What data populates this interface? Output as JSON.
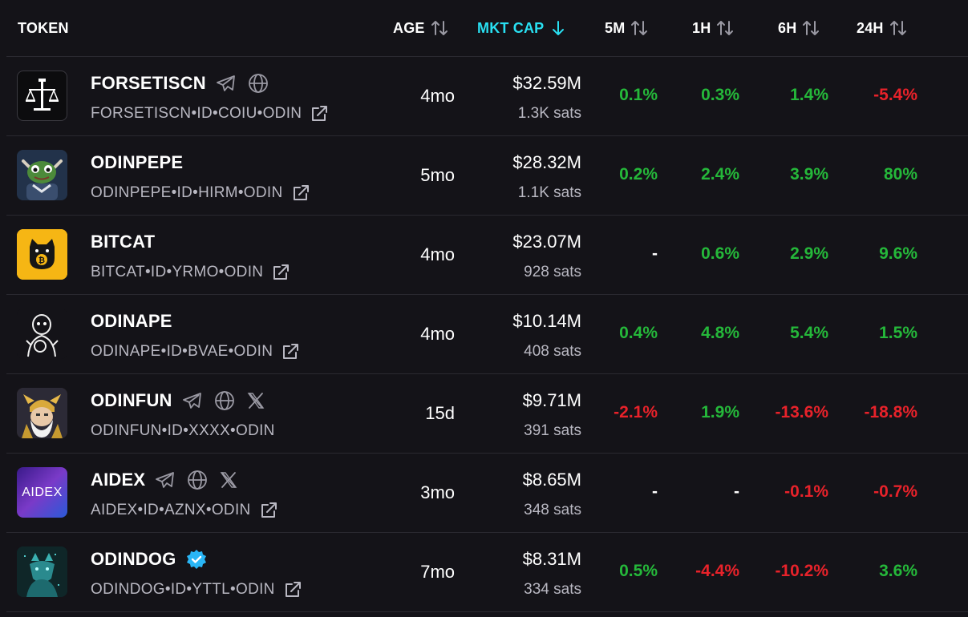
{
  "colors": {
    "background": "#141318",
    "accent": "#29e0f2",
    "positive": "#25b83a",
    "negative": "#e8222a",
    "muted": "#b9b8c2",
    "verified": "#29b6f6"
  },
  "header": {
    "token": "TOKEN",
    "age": "AGE",
    "mkt_cap": "MKT CAP",
    "m5": "5M",
    "h1": "1H",
    "h6": "6H",
    "h24": "24H",
    "active_sort": "MKT CAP",
    "sort_direction": "descending"
  },
  "rows": [
    {
      "name": "FORSETISCN",
      "id": "FORSETISCN•ID•COIU•ODIN",
      "age": "4mo",
      "mkt_cap": "$32.59M",
      "sats": "1.3K sats",
      "m5": "0.1%",
      "h1": "0.3%",
      "h6": "1.4%",
      "h24": "-5.4%",
      "icons": [
        "telegram-icon",
        "website-icon",
        "external-link-icon"
      ]
    },
    {
      "name": "ODINPEPE",
      "id": "ODINPEPE•ID•HIRM•ODIN",
      "age": "5mo",
      "mkt_cap": "$28.32M",
      "sats": "1.1K sats",
      "m5": "0.2%",
      "h1": "2.4%",
      "h6": "3.9%",
      "h24": "80%",
      "icons": [
        "external-link-icon"
      ]
    },
    {
      "name": "BITCAT",
      "id": "BITCAT•ID•YRMO•ODIN",
      "age": "4mo",
      "mkt_cap": "$23.07M",
      "sats": "928 sats",
      "m5": "-",
      "h1": "0.6%",
      "h6": "2.9%",
      "h24": "9.6%",
      "icons": [
        "external-link-icon"
      ]
    },
    {
      "name": "ODINAPE",
      "id": "ODINAPE•ID•BVAE•ODIN",
      "age": "4mo",
      "mkt_cap": "$10.14M",
      "sats": "408 sats",
      "m5": "0.4%",
      "h1": "4.8%",
      "h6": "5.4%",
      "h24": "1.5%",
      "icons": [
        "external-link-icon"
      ]
    },
    {
      "name": "ODINFUN",
      "id": "ODINFUN•ID•XXXX•ODIN",
      "age": "15d",
      "mkt_cap": "$9.71M",
      "sats": "391 sats",
      "m5": "-2.1%",
      "h1": "1.9%",
      "h6": "-13.6%",
      "h24": "-18.8%",
      "icons": [
        "telegram-icon",
        "website-icon",
        "x-icon"
      ]
    },
    {
      "name": "AIDEX",
      "id": "AIDEX•ID•AZNX•ODIN",
      "age": "3mo",
      "mkt_cap": "$8.65M",
      "sats": "348 sats",
      "m5": "-",
      "h1": "-",
      "h6": "-0.1%",
      "h24": "-0.7%",
      "logo_text": "AIDEX",
      "icons": [
        "telegram-icon",
        "website-icon",
        "x-icon",
        "external-link-icon"
      ]
    },
    {
      "name": "ODINDOG",
      "id": "ODINDOG•ID•YTTL•ODIN",
      "age": "7mo",
      "mkt_cap": "$8.31M",
      "sats": "334 sats",
      "m5": "0.5%",
      "h1": "-4.4%",
      "h6": "-10.2%",
      "h24": "3.6%",
      "icons": [
        "verified-icon",
        "external-link-icon"
      ]
    }
  ]
}
